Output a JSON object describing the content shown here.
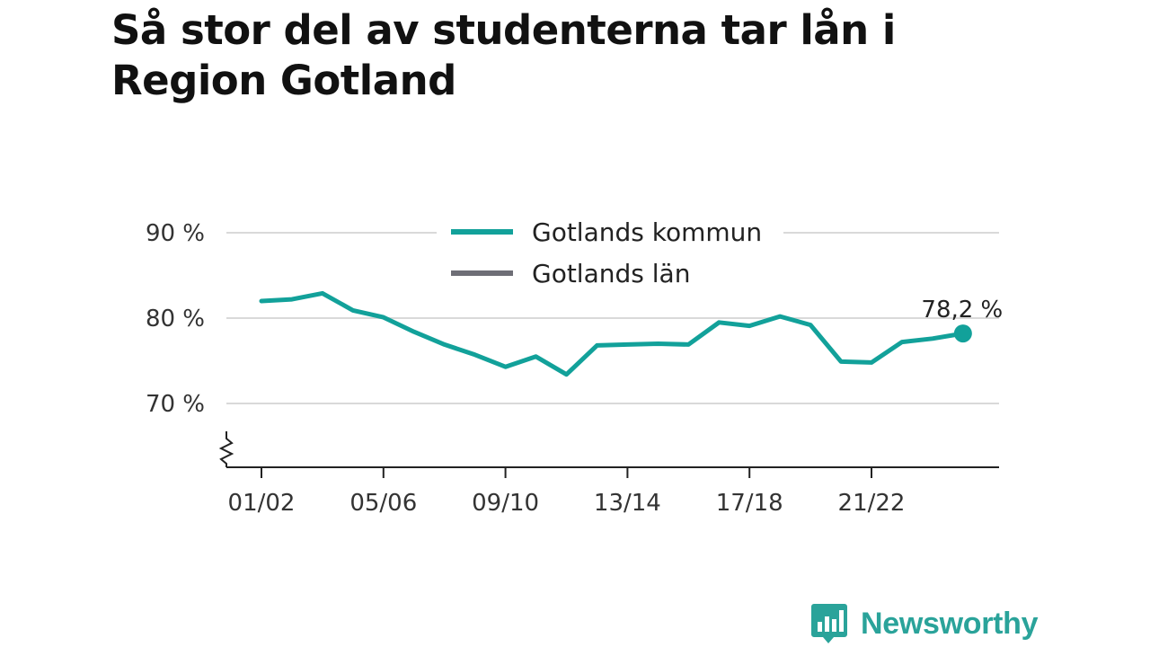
{
  "title": "Så stor del av studenterna tar lån i Region Gotland",
  "colors": {
    "series_kommun": "#12a19a",
    "series_lan": "#6e6e76",
    "grid": "#d9d9d9",
    "axis": "#222222",
    "brand": "#2aa39a"
  },
  "chart_data": {
    "type": "line",
    "title": "Så stor del av studenterna tar lån i Region Gotland",
    "xlabel": "",
    "ylabel": "",
    "y_unit": "%",
    "ylim": [
      63,
      91
    ],
    "y_ticks": [
      {
        "value": 70,
        "label": "70 %"
      },
      {
        "value": 80,
        "label": "80 %"
      },
      {
        "value": 90,
        "label": "90 %"
      }
    ],
    "y_axis_break": true,
    "x": [
      "01/02",
      "02/03",
      "03/04",
      "04/05",
      "05/06",
      "06/07",
      "07/08",
      "08/09",
      "09/10",
      "10/11",
      "11/12",
      "12/13",
      "13/14",
      "14/15",
      "15/16",
      "16/17",
      "17/18",
      "18/19",
      "19/20",
      "20/21",
      "21/22",
      "22/23",
      "23/24",
      "24/25"
    ],
    "x_tick_labels": [
      "01/02",
      "05/06",
      "09/10",
      "13/14",
      "17/18",
      "21/22"
    ],
    "grid": true,
    "legend_position": "top-center",
    "legend": [
      "Gotlands kommun",
      "Gotlands län"
    ],
    "series": [
      {
        "name": "Gotlands kommun",
        "color": "#12a19a",
        "values": [
          82.0,
          82.2,
          82.9,
          80.9,
          80.1,
          78.4,
          76.9,
          75.7,
          74.3,
          75.5,
          73.4,
          76.8,
          76.9,
          77.0,
          76.9,
          79.5,
          79.1,
          80.2,
          79.2,
          74.9,
          74.8,
          77.2,
          77.6,
          78.2
        ],
        "end_label": "78,2 %"
      }
    ]
  },
  "brand": {
    "name": "Newsworthy",
    "logo_icon": "bar-chart-speech-bubble-icon"
  }
}
